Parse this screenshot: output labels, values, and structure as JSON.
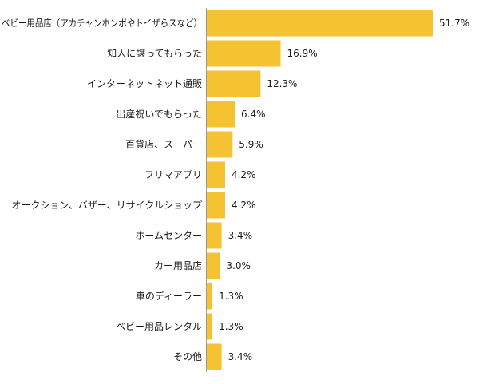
{
  "chart_data": {
    "type": "bar",
    "orientation": "horizontal",
    "categories": [
      "ベビー用品店（アカチャンホンポやトイザらスなど）",
      "知人に譲ってもらった",
      "インターネットネット通販",
      "出産祝いでもらった",
      "百貨店、スーパー",
      "フリマアプリ",
      "オークション、バザー、リサイクルショップ",
      "ホームセンター",
      "カー用品店",
      "車のディーラー",
      "ベビー用品レンタル",
      "その他"
    ],
    "values": [
      51.7,
      16.9,
      12.3,
      6.4,
      5.9,
      4.2,
      4.2,
      3.4,
      3.0,
      1.3,
      1.3,
      3.4
    ],
    "value_labels": [
      "51.7%",
      "16.9%",
      "12.3%",
      "6.4%",
      "5.9%",
      "4.2%",
      "4.2%",
      "3.4%",
      "3.0%",
      "1.3%",
      "1.3%",
      "3.4%"
    ],
    "unit": "%",
    "xlim": [
      0,
      60
    ],
    "grid": false,
    "legend": "none",
    "colors": {
      "bar": "#f5c232",
      "axis": "#999999",
      "text": "#1a1a1a",
      "background": "#ffffff"
    }
  }
}
